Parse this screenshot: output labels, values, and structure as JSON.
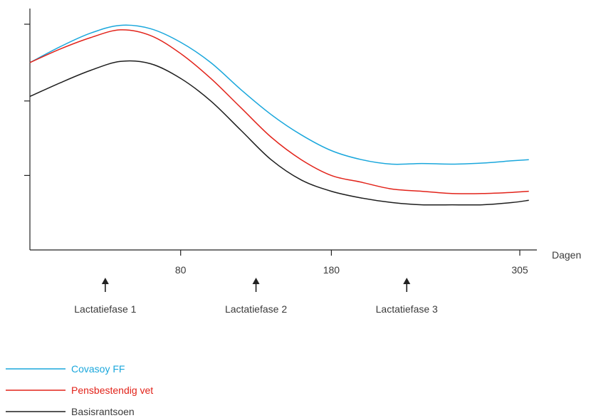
{
  "chart_data": {
    "type": "line",
    "title": "",
    "xlabel": "Dagen",
    "ylabel": "",
    "xlim": [
      -20,
      305
    ],
    "ylim": [
      0,
      100
    ],
    "x_ticks": [
      80,
      180,
      305
    ],
    "y_ticks": [
      33,
      66,
      100
    ],
    "grid": false,
    "legend_position": "bottom-left",
    "series": [
      {
        "name": "Covasoy FF",
        "color": "#1aa7dc",
        "x": [
          -20,
          0,
          20,
          40,
          60,
          80,
          100,
          120,
          140,
          160,
          180,
          200,
          220,
          240,
          260,
          280,
          300,
          311
        ],
        "y": [
          83,
          90,
          96,
          99.5,
          98,
          92,
          83,
          71,
          60,
          51,
          44,
          40,
          38,
          38.3,
          38,
          38.5,
          39.5,
          40
        ]
      },
      {
        "name": "Pensbestendig vet",
        "color": "#e2231a",
        "x": [
          -20,
          0,
          20,
          40,
          60,
          80,
          100,
          120,
          140,
          160,
          180,
          200,
          220,
          240,
          260,
          280,
          300,
          311
        ],
        "y": [
          83,
          89,
          94,
          97.5,
          95,
          87,
          76,
          63,
          50,
          40,
          33,
          30,
          27,
          26,
          25,
          25,
          25.5,
          26
        ]
      },
      {
        "name": "Basisrantsoen",
        "color": "#1e1e1e",
        "x": [
          -20,
          0,
          20,
          40,
          60,
          80,
          100,
          120,
          140,
          160,
          180,
          200,
          220,
          240,
          260,
          280,
          300,
          311
        ],
        "y": [
          68,
          74,
          79.5,
          83.5,
          82.5,
          76,
          66,
          53,
          40,
          31,
          26,
          23,
          21,
          20,
          20,
          20,
          21,
          22
        ]
      }
    ],
    "phase_markers": [
      {
        "label": "Lactatiefase 1",
        "x": 30
      },
      {
        "label": "Lactatiefase 2",
        "x": 130
      },
      {
        "label": "Lactatiefase 3",
        "x": 230
      }
    ]
  }
}
